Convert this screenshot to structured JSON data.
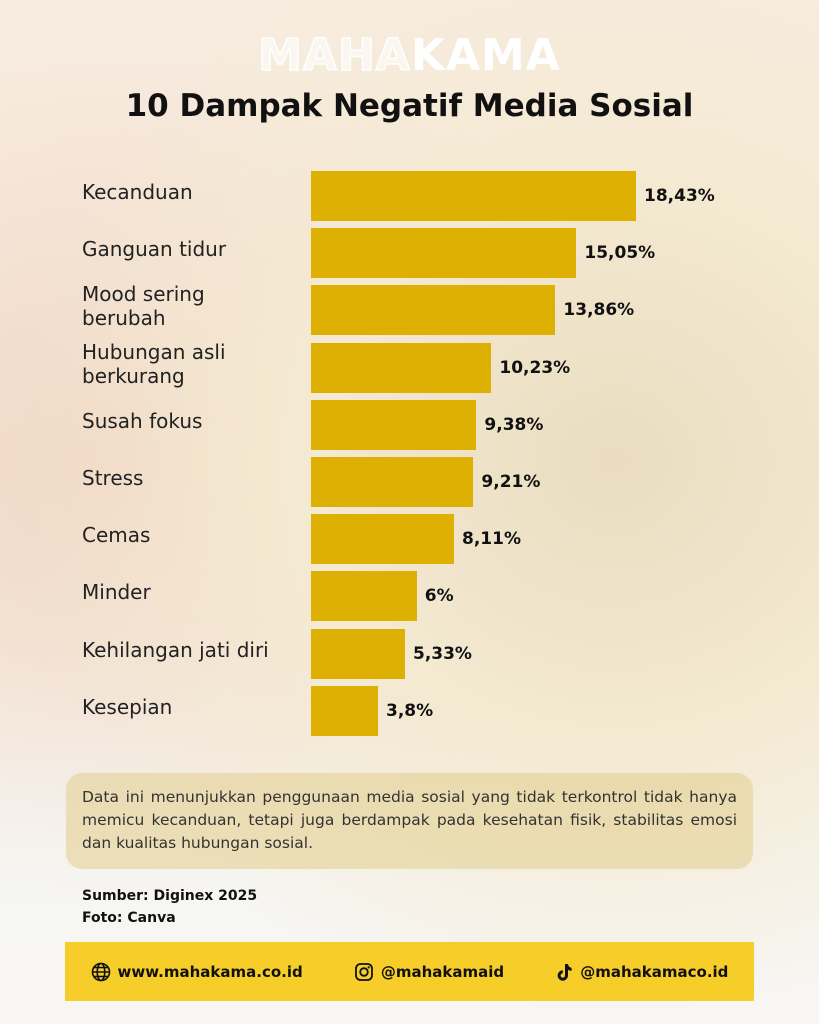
{
  "logo": {
    "light": "MAHA",
    "bold": "KAMA"
  },
  "chart_data": {
    "type": "bar",
    "orientation": "horizontal",
    "title": "10 Dampak Negatif Media Sosial",
    "categories": [
      "Kecanduan",
      "Ganguan tidur",
      "Mood sering berubah",
      "Hubungan asli berkurang",
      "Susah fokus",
      "Stress",
      "Cemas",
      "Minder",
      "Kehilangan jati diri",
      "Kesepian"
    ],
    "values": [
      18.43,
      15.05,
      13.86,
      10.23,
      9.38,
      9.21,
      8.11,
      6,
      5.33,
      3.8
    ],
    "value_labels": [
      "18,43%",
      "15,05%",
      "13,86%",
      "10,23%",
      "9,38%",
      "9,21%",
      "8,11%",
      "6%",
      "5,33%",
      "3,8%"
    ],
    "color": "#deb004"
  },
  "note": "Data ini menunjukkan penggunaan media sosial yang tidak terkontrol tidak hanya memicu kecanduan, tetapi juga berdampak pada kesehatan fisik, stabilitas emosi dan kualitas hubungan sosial.",
  "source": "Sumber: Diginex 2025",
  "photo_credit": "Foto: Canva",
  "footer": {
    "website": "www.mahakama.co.id",
    "instagram": "@mahakamaid",
    "tiktok": "@mahakamaco.id"
  }
}
